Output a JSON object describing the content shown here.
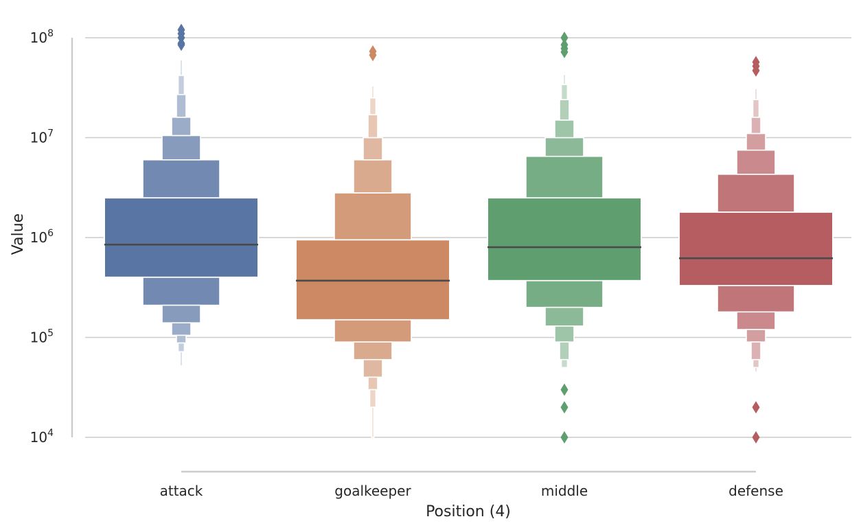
{
  "chart_data": {
    "type": "boxen",
    "title": "",
    "xlabel": "Position (4)",
    "ylabel": "Value",
    "y_scale": "log",
    "ylim": [
      10000,
      100000000
    ],
    "y_ticks": [
      {
        "value": 10000,
        "base": "10",
        "exp": "4"
      },
      {
        "value": 100000,
        "base": "10",
        "exp": "5"
      },
      {
        "value": 1000000,
        "base": "10",
        "exp": "6"
      },
      {
        "value": 10000000,
        "base": "10",
        "exp": "7"
      },
      {
        "value": 100000000,
        "base": "10",
        "exp": "8"
      }
    ],
    "grid": "horizontal",
    "categories": [
      "attack",
      "goalkeeper",
      "middle",
      "defense"
    ],
    "colors": [
      "#5975a4",
      "#cc8963",
      "#5f9e6e",
      "#b55d60"
    ],
    "series": [
      {
        "category": "attack",
        "median": 850000,
        "levels": [
          {
            "low": 400000,
            "high": 2500000
          },
          {
            "low": 210000,
            "high": 6000000
          },
          {
            "low": 140000,
            "high": 10500000
          },
          {
            "low": 105000,
            "high": 16000000
          },
          {
            "low": 88000,
            "high": 27000000
          },
          {
            "low": 72000,
            "high": 42000000
          },
          {
            "low": 52000,
            "high": 60000000
          }
        ],
        "outliers": [
          120000000,
          110000000,
          100000000,
          88000000,
          85000000
        ]
      },
      {
        "category": "goalkeeper",
        "median": 370000,
        "levels": [
          {
            "low": 150000,
            "high": 950000
          },
          {
            "low": 90000,
            "high": 2800000
          },
          {
            "low": 60000,
            "high": 6000000
          },
          {
            "low": 40000,
            "high": 10000000
          },
          {
            "low": 30000,
            "high": 17000000
          },
          {
            "low": 20000,
            "high": 25000000
          },
          {
            "low": 10000,
            "high": 33000000
          }
        ],
        "outliers": [
          73000000,
          67000000
        ]
      },
      {
        "category": "middle",
        "median": 800000,
        "levels": [
          {
            "low": 370000,
            "high": 2500000
          },
          {
            "low": 200000,
            "high": 6500000
          },
          {
            "low": 130000,
            "high": 10000000
          },
          {
            "low": 90000,
            "high": 15000000
          },
          {
            "low": 60000,
            "high": 24000000
          },
          {
            "low": 50000,
            "high": 34000000
          },
          {
            "low": 50000,
            "high": 43000000
          }
        ],
        "outliers": [
          100000000,
          85000000,
          78000000,
          72000000,
          30000,
          20000,
          10000
        ]
      },
      {
        "category": "defense",
        "median": 620000,
        "levels": [
          {
            "low": 330000,
            "high": 1800000
          },
          {
            "low": 180000,
            "high": 4300000
          },
          {
            "low": 120000,
            "high": 7500000
          },
          {
            "low": 90000,
            "high": 11000000
          },
          {
            "low": 60000,
            "high": 16000000
          },
          {
            "low": 50000,
            "high": 24000000
          },
          {
            "low": 45000,
            "high": 31000000
          }
        ],
        "outliers": [
          57000000,
          52000000,
          47000000,
          20000,
          10000
        ]
      }
    ]
  }
}
